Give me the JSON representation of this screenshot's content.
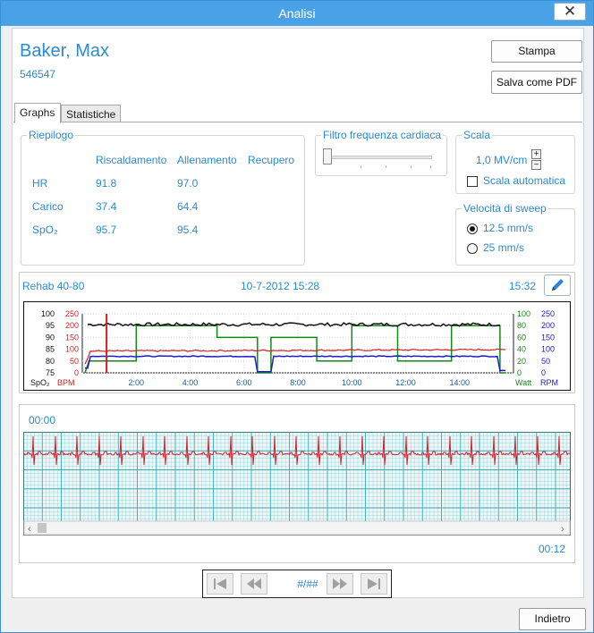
{
  "window": {
    "title": "Analisi",
    "close_icon": "close-icon"
  },
  "patient": {
    "name": "Baker, Max",
    "id": "546547"
  },
  "buttons": {
    "print": "Stampa",
    "save_pdf": "Salva come PDF",
    "back": "Indietro"
  },
  "tabs": [
    {
      "label": "Graphs",
      "active": true
    },
    {
      "label": "Statistiche",
      "active": false
    }
  ],
  "summary": {
    "legend": "Riepilogo",
    "columns": [
      "Riscaldamento",
      "Allenamento",
      "Recupero"
    ],
    "rows": [
      {
        "label": "HR",
        "values": [
          "91.8",
          "97.0",
          ""
        ]
      },
      {
        "label": "Carico",
        "values": [
          "37.4",
          "64.4",
          ""
        ]
      },
      {
        "label": "SpO₂",
        "values": [
          "95.7",
          "95.4",
          ""
        ]
      }
    ]
  },
  "hr_filter": {
    "legend": "Filtro frequenza cardiaca",
    "level": 0
  },
  "scale": {
    "legend": "Scala",
    "value": "1,0 MV/cm",
    "plus": "+",
    "minus": "−",
    "auto_label": "Scala automatica",
    "auto_checked": false
  },
  "sweep": {
    "legend": "Velocità di sweep",
    "options": [
      "12.5 mm/s",
      "25 mm/s"
    ],
    "selected": "12.5 mm/s"
  },
  "trend": {
    "program": "Rehab 40-80",
    "datetime": "10-7-2012 15:28",
    "duration": "15:32",
    "edit_icon": "pencil-icon",
    "axis_labels": {
      "spo2": "SpO₂",
      "bpm": "BPM",
      "watt": "Watt",
      "rpm": "RPM"
    },
    "spo2_ticks": [
      "100",
      "95",
      "90",
      "85",
      "80",
      "75"
    ],
    "bpm_ticks": [
      "250",
      "200",
      "150",
      "100",
      "50",
      "0"
    ],
    "watt_ticks": [
      "100",
      "80",
      "60",
      "40",
      "20",
      "0"
    ],
    "rpm_ticks": [
      "250",
      "200",
      "150",
      "100",
      "50",
      "0"
    ],
    "x_ticks": [
      "2:00",
      "4:00",
      "6:00",
      "8:00",
      "10:00",
      "12:00",
      "14:00"
    ],
    "colors": {
      "spo2": "#111111",
      "bpm": "#d32020",
      "watt": "#138a13",
      "rpm": "#1c1ccc"
    }
  },
  "ecg": {
    "start_time": "00:00",
    "end_time": "00:12",
    "grid_color": "#2aa3a8",
    "trace_color": "#d82030"
  },
  "nav": {
    "page": "#/##",
    "first_icon": "skip-first-icon",
    "prev_icon": "step-back-icon",
    "next_icon": "step-forward-icon",
    "last_icon": "skip-last-icon"
  }
}
